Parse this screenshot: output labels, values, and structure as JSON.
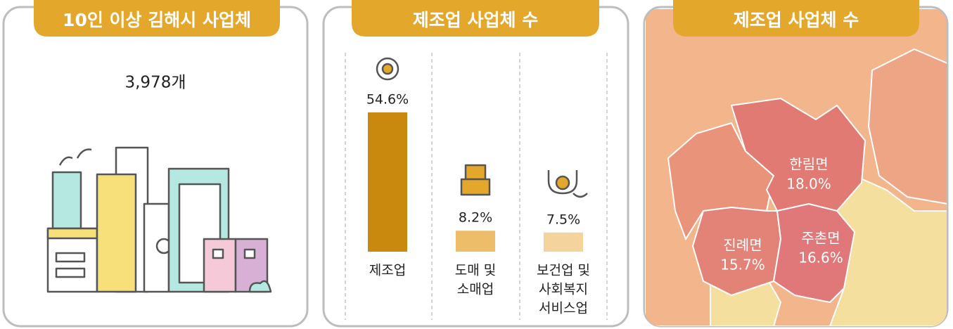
{
  "panels": [
    {
      "title": "10인 이상 김해시 사업체",
      "value_label": "3,978개"
    },
    {
      "title": "제조업 사업체 수",
      "categories": [
        [
          "제조업"
        ],
        [
          "도매 및",
          "소매업"
        ],
        [
          "보건업 및",
          "사회복지",
          "서비스업"
        ]
      ],
      "values": [
        54.6,
        8.2,
        7.5
      ],
      "value_labels": [
        "54.6%",
        "8.2%",
        "7.5%"
      ],
      "colors": [
        "#c8890e",
        "#edbd6a",
        "#f4d49c"
      ]
    },
    {
      "title": "제조업 사업체 수",
      "regions": [
        {
          "name": "한림면",
          "value": 18.0,
          "value_label": "18.0%"
        },
        {
          "name": "진례면",
          "value": 15.7,
          "value_label": "15.7%"
        },
        {
          "name": "주촌면",
          "value": 16.6,
          "value_label": "16.6%"
        }
      ]
    }
  ]
}
